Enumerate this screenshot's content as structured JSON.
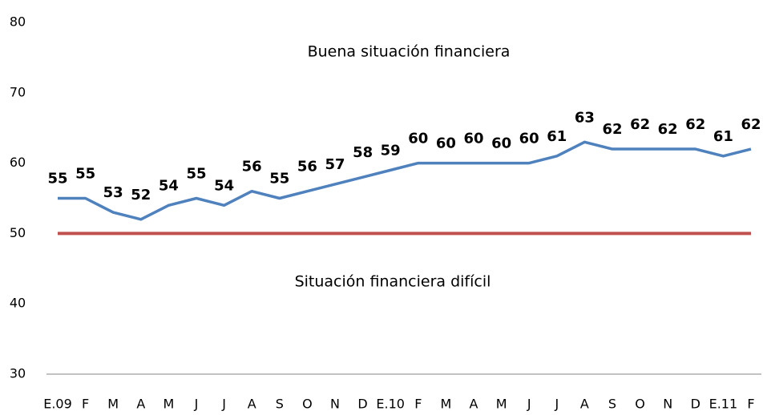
{
  "chart_data": {
    "type": "line",
    "categories": [
      "E.09",
      "F",
      "M",
      "A",
      "M",
      "J",
      "J",
      "A",
      "S",
      "O",
      "N",
      "D",
      "E.10",
      "F",
      "M",
      "A",
      "M",
      "J",
      "J",
      "A",
      "S",
      "O",
      "N",
      "D",
      "E.11",
      "F"
    ],
    "series": [
      {
        "name": null,
        "color": "#4f81bd",
        "values": [
          55,
          55,
          53,
          52,
          54,
          55,
          54,
          56,
          55,
          56,
          57,
          58,
          59,
          60,
          60,
          60,
          60,
          60,
          61,
          63,
          62,
          62,
          62,
          62,
          61,
          62
        ]
      }
    ],
    "reference_line": {
      "value": 50,
      "color": "#c0504d"
    },
    "annotations": [
      "Buena situación financiera",
      "Situación financiera difícil"
    ],
    "ylim": [
      30,
      80
    ],
    "yticks": [
      30,
      40,
      50,
      60,
      70,
      80
    ],
    "grid": false
  }
}
